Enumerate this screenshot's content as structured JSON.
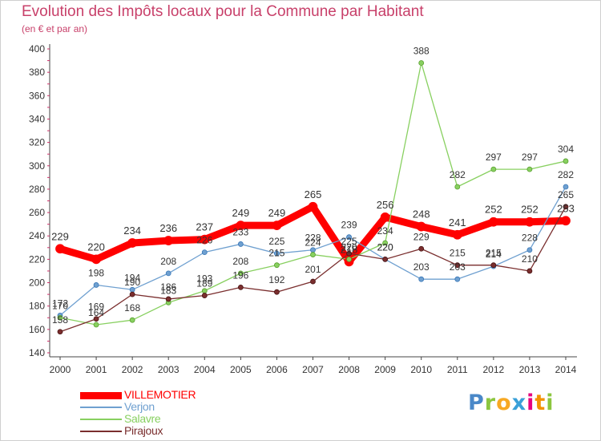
{
  "title": "Evolution des Impôts locaux pour la Commune par Habitant",
  "subtitle": "(en € et par an)",
  "brand": {
    "letters": [
      {
        "ch": "P",
        "color": "#4a88c8"
      },
      {
        "ch": "r",
        "color": "#8cc63f"
      },
      {
        "ch": "o",
        "color": "#f7a823"
      },
      {
        "ch": "x",
        "color": "#3aa0d8"
      },
      {
        "ch": "i",
        "color": "#e6007e"
      },
      {
        "ch": "t",
        "color": "#f39200"
      },
      {
        "ch": "i",
        "color": "#8cc63f"
      }
    ]
  },
  "chart_data": {
    "type": "line",
    "x": [
      2000,
      2001,
      2002,
      2003,
      2004,
      2005,
      2006,
      2007,
      2008,
      2009,
      2010,
      2011,
      2012,
      2013,
      2014
    ],
    "ylim": [
      140,
      400
    ],
    "yticks": [
      140,
      160,
      180,
      200,
      220,
      240,
      260,
      280,
      300,
      320,
      340,
      360,
      380,
      400
    ],
    "grid": false,
    "legend_position": "bottom-left",
    "series": [
      {
        "name": "VILLEMOTIER",
        "color": "#ff0000",
        "values": [
          229,
          220,
          234,
          236,
          237,
          249,
          249,
          265,
          218,
          256,
          248,
          241,
          252,
          252,
          253
        ]
      },
      {
        "name": "Verjon",
        "color": "#6fa0d0",
        "values": [
          172,
          198,
          194,
          208,
          226,
          233,
          225,
          228,
          239,
          220,
          203,
          203,
          214,
          228,
          282
        ]
      },
      {
        "name": "Salavre",
        "color": "#88d060",
        "values": [
          170,
          164,
          168,
          183,
          193,
          208,
          215,
          224,
          220,
          234,
          388,
          282,
          297,
          297,
          304
        ]
      },
      {
        "name": "Pirajoux",
        "color": "#7a2e2e",
        "values": [
          158,
          169,
          190,
          186,
          189,
          196,
          192,
          201,
          225,
          220,
          229,
          215,
          215,
          210,
          265
        ]
      }
    ]
  }
}
